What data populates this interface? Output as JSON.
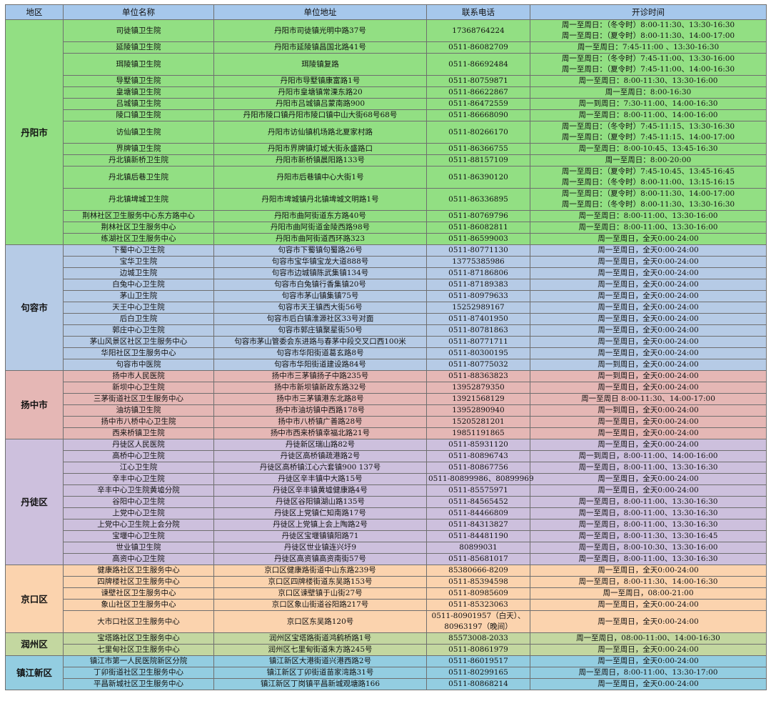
{
  "headers": [
    "地区",
    "单位名称",
    "单位地址",
    "联系电话",
    "开诊时间"
  ],
  "groups": [
    {
      "district": "丹阳市",
      "color": "#92df83",
      "rows": [
        [
          "司徒镇卫生院",
          "丹阳市司徒镇光明中路37号",
          "17368764224",
          [
            "周一至周日：（冬令时）8:00-11:30、13:30-16:30",
            "周一至周日：（夏令时）8:00-11:30、14:00-17:00"
          ]
        ],
        [
          "延陵镇卫生院",
          "丹阳市延陵镇昌国北路41号",
          "0511-86082709",
          "周一至周日：7:45-11:00 、13:30-16:30"
        ],
        [
          "珥陵镇卫生院",
          "珥陵镇复路",
          "0511-86692484",
          [
            "周一至周日：（冬令时）7:45-11:00、13:30-16:00",
            "周一至周日：（夏令时）7:45-11:00、14:00-16:30"
          ]
        ],
        [
          "导墅镇卫生院",
          "丹阳市导墅镇康富路1号",
          "0511-80759871",
          "周一至周日：8:00-11:30、13:30-16:00"
        ],
        [
          "皇塘镇卫生院",
          "丹阳市皇塘镇常溧东路20",
          "0511-86622867",
          "周一至周日：8:00-16:30"
        ],
        [
          "吕城镇卫生院",
          "丹阳市吕城镇吕蒙南路900",
          "0511-86472559",
          "周一到周日：7:30-11:00、14:00-16:30"
        ],
        [
          "陵口镇卫生院",
          "丹阳市陵口镇丹阳市陵口镇中山大街68号68号",
          "0511-86668090",
          "周一至周日：8:00-11:00、14:00-16:00"
        ],
        [
          "访仙镇卫生院",
          "丹阳市访仙镇机场路北夏家村路",
          "0511-80266170",
          [
            "周一至周日：（冬令时）7:45-11:15、13:30-16:30",
            "周一至周日：（夏令时）7:45-11:15、14:00-17:00"
          ]
        ],
        [
          "界牌镇卫生院",
          "丹阳市界牌镇灯城大街永盛路口",
          "0511-86366755",
          "周一至周日：8:00-10:45、13:45-16:30"
        ],
        [
          "丹北镇新桥卫生院",
          "丹阳市新桥镇晨阳路133号",
          "0511-88157109",
          "周一至周日：8:00-20:00"
        ],
        [
          "丹北镇后巷卫生院",
          "丹阳市后巷镇中心大街1号",
          "0511-86390120",
          [
            "周一至周日：（夏令时）7:45-10:45、13:45-16:45",
            "周一至周日：（冬令时）8:00-11:00、13:15-16:15"
          ]
        ],
        [
          "丹北镇埤城卫生院",
          "丹阳市埤城镇丹北镇埤城文明路1号",
          "0511-86336895",
          [
            "周一至周日：（夏令时）8:00-11:30、14:00-17:00",
            "周一至周日：（冬令时）8:00-11:30、13:30-16:30"
          ]
        ],
        [
          "荆林社区卫生服务中心东方路中心",
          "丹阳市曲阿街道东方路40号",
          "0511-80769796",
          "周一至周日：8:00-11:00、13:30-16:00"
        ],
        [
          "荆林社区卫生服务中心",
          "丹阳市曲阿街道金陵西路98号",
          "0511-86082811",
          "周一至周日：8:00-11:00、13:30-16:00"
        ],
        [
          "练湖社区卫生服务中心",
          "丹阳市曲阿街道西环路323",
          "0511-86599003",
          "周一至周日，全天0:00-24:00"
        ]
      ]
    },
    {
      "district": "句容市",
      "color": "#b6cbe6",
      "rows": [
        [
          "下蜀中心卫生院",
          "句容市下蜀镇句蜀路26号",
          "0511-80771130",
          "周一至周日，全天0:00-24:00"
        ],
        [
          "宝华卫生院",
          "句容市宝华镇宝龙大道888号",
          "13775385986",
          "周一至周日，全天0:00-24:00"
        ],
        [
          "边城卫生院",
          "句容市边城镇陈武集镇134号",
          "0511-87186806",
          "周一至周日，全天0:00-24:00"
        ],
        [
          "白兔中心卫生院",
          "句容市白兔镇行香集镇20号",
          "0511-87189383",
          "周一至周日，全天0:00-24:00"
        ],
        [
          "茅山卫生院",
          "句容市茅山镇集镇75号",
          "0511-80979633",
          "周一至周日，全天0:00-24:00"
        ],
        [
          "天王中心卫生院",
          "句容市天王镇西大街56号",
          "15252989167",
          "周一至周日，全天0:00-24:00"
        ],
        [
          "后白卫生院",
          "句容市后白镇淮源社区33号对面",
          "0511-87401950",
          "周一至周日，全天0:00-24:00"
        ],
        [
          "郭庄中心卫生院",
          "句容市郭庄镇聚星街50号",
          "0511-80781863",
          "周一至周日，全天0:00-24:00"
        ],
        [
          "茅山风景区社区卫生服务中心",
          "句容市茅山管委会东进路与春茅中段交叉口西100米",
          "0511-80771711",
          "周一至周日，全天0:00-24:00"
        ],
        [
          "华阳社区卫生服务中心",
          "句容市华阳街道葛玄路8号",
          "0511-80300195",
          "周一至周日，全天0:00-24:00"
        ],
        [
          "句容市中医院",
          "句容市华阳街道建设路84号",
          "0511-80775032",
          "周一到周日，全天0:00-24:00"
        ]
      ]
    },
    {
      "district": "扬中市",
      "color": "#e5b7b5",
      "rows": [
        [
          "扬中市人民医院",
          "扬中市三茅镇扬子中路235号",
          "0511-88363823",
          "周一到周日，全天0:00-24:00"
        ],
        [
          "新坝中心卫生院",
          "扬中市新坝镇新政东路32号",
          "13952879350",
          "周一至周日，全天0:00-24:00"
        ],
        [
          "三茅街道社区卫生服务中心",
          "扬中市三茅镇港东北路8号",
          "13921568129",
          "周一至周日 8:00-11:30、14:00-17:00"
        ],
        [
          "油坊镇卫生院",
          "扬中市油坊镇中西路178号",
          "13952890940",
          "周一到周日，全天0:00-24:00"
        ],
        [
          "扬中市八桥中心卫生院",
          "扬中市八桥镇广善路28号",
          "15205281201",
          "周一至周日，全天0:00-24:00"
        ],
        [
          "西来桥镇卫生院",
          "扬中市西来桥镇幸福北路21号",
          "19851191865",
          "周一至周日，全天0:00-24:00"
        ]
      ]
    },
    {
      "district": "丹徒区",
      "color": "#cdc0dd",
      "rows": [
        [
          "丹徒区人民医院",
          "丹徒新区瑞山路82号",
          "0511-85931120",
          "周一至周日，全天0:00-24:00"
        ],
        [
          "高桥中心卫生院",
          "丹徒区高桥镇疏港路2号",
          "0511-80896743",
          "周一到周日，8:00-11:00、14:00-16:00"
        ],
        [
          "江心卫生院",
          "丹徒区高桥镇江心六套镇900 137号",
          "0511-80867756",
          "周一至周日，8:00-11:00、13:30-16:30"
        ],
        [
          "辛丰中心卫生院",
          "丹徒区辛丰镇中大路15号",
          "0511-80899986、80899969",
          "周一至周日，全天0:00-24:00"
        ],
        [
          "辛丰中心卫生院黄墟分院",
          "丹徒区辛丰镇黄墟健康路4号",
          "0511-85575971",
          "周一至周日，全天0:00-24:00"
        ],
        [
          "谷阳中心卫生院",
          "丹徒区谷阳镇湖山路135号",
          "0511-84565452",
          "周一至周日，8:00-11:00、13:30-16:30"
        ],
        [
          "上党中心卫生院",
          "丹徒区上党镇仁知南路17号",
          "0511-84466809",
          "周一至周日，8:00-11:00、13:30-16:30"
        ],
        [
          "上党中心卫生院上会分院",
          "丹徒区上党镇上会上陶路2号",
          "0511-84313827",
          "周一至周日，8:00-11:00、13:30-16:30"
        ],
        [
          "宝堰中心卫生院",
          "丹徒区宝堰镇镇阳路71",
          "0511-84481190",
          "周一至周日，8:00-11:30、13:30-16:45"
        ],
        [
          "世业镇卫生院",
          "丹徒区世业镇连兴圩9",
          "80899031",
          "周一至周日，8:00-10:30、13:30-16:00"
        ],
        [
          "高资中心卫生院",
          "丹徒区高资镇高资南街57号",
          "0511-85681017",
          "周一至周日，8:00-11:00、13:30-16:30"
        ]
      ]
    },
    {
      "district": "京口区",
      "color": "#fbd3ae",
      "rows": [
        [
          "健康路社区卫生服务中心",
          "京口区健康路街道中山东路239号",
          "85380666-8209",
          "周一至周日，全天0:00-24:00"
        ],
        [
          "四牌楼社区卫生服务中心",
          "京口区四牌楼街道东吴路153号",
          "0511-85394598",
          "周一至周日，8:00-11:30、14:00-16:30"
        ],
        [
          "谏壁社区卫生服务中心",
          "京口区谏壁镇于山街27号",
          "0511-80985609",
          "周一至周日，08:00-21:00"
        ],
        [
          "象山社区卫生服务中心",
          "京口区象山街道谷阳路217号",
          "0511-85323063",
          "周一至周日，全天0:00-24:00"
        ],
        [
          "大市口社区卫生服务中心",
          "京口区东吴路120号",
          [
            "0511-80901957（白天）、",
            "80963197（晚间）"
          ],
          "周一至周日，全天0:00-24:00"
        ]
      ]
    },
    {
      "district": "润州区",
      "color": "#c3d7a0",
      "rows": [
        [
          "宝塔路社区卫生服务中心",
          "润州区宝塔路街道鸿鹤桥路1号",
          "85573008-2033",
          "周一至周日，08:00-11:00、14:00-16:30"
        ],
        [
          "七里甸社区卫生服务中心",
          "润州区七里甸街道朱方路245号",
          "0511-80861979",
          "周一至周日，全天0:00-24:00"
        ]
      ]
    },
    {
      "district": "镇江新区",
      "color": "#93cde1",
      "rows": [
        [
          "镇江市第一人民医院新区分院",
          "镇江新区大港街道兴港西路2号",
          "0511-86019517",
          "周一至周日，全天0:00-24:00"
        ],
        [
          "丁卯街道社区卫生服务中心",
          "镇江新区丁卯街道苗家湾路31号",
          "0511-80299165",
          "周一至周日，8:00-11:00、13:30-17:00"
        ],
        [
          "平昌新城社区卫生服务中心",
          "镇江新区丁岗镇平昌新城观塘路166",
          "0511-80868214",
          "周一至周日，全天0:00-24:00"
        ]
      ]
    }
  ]
}
